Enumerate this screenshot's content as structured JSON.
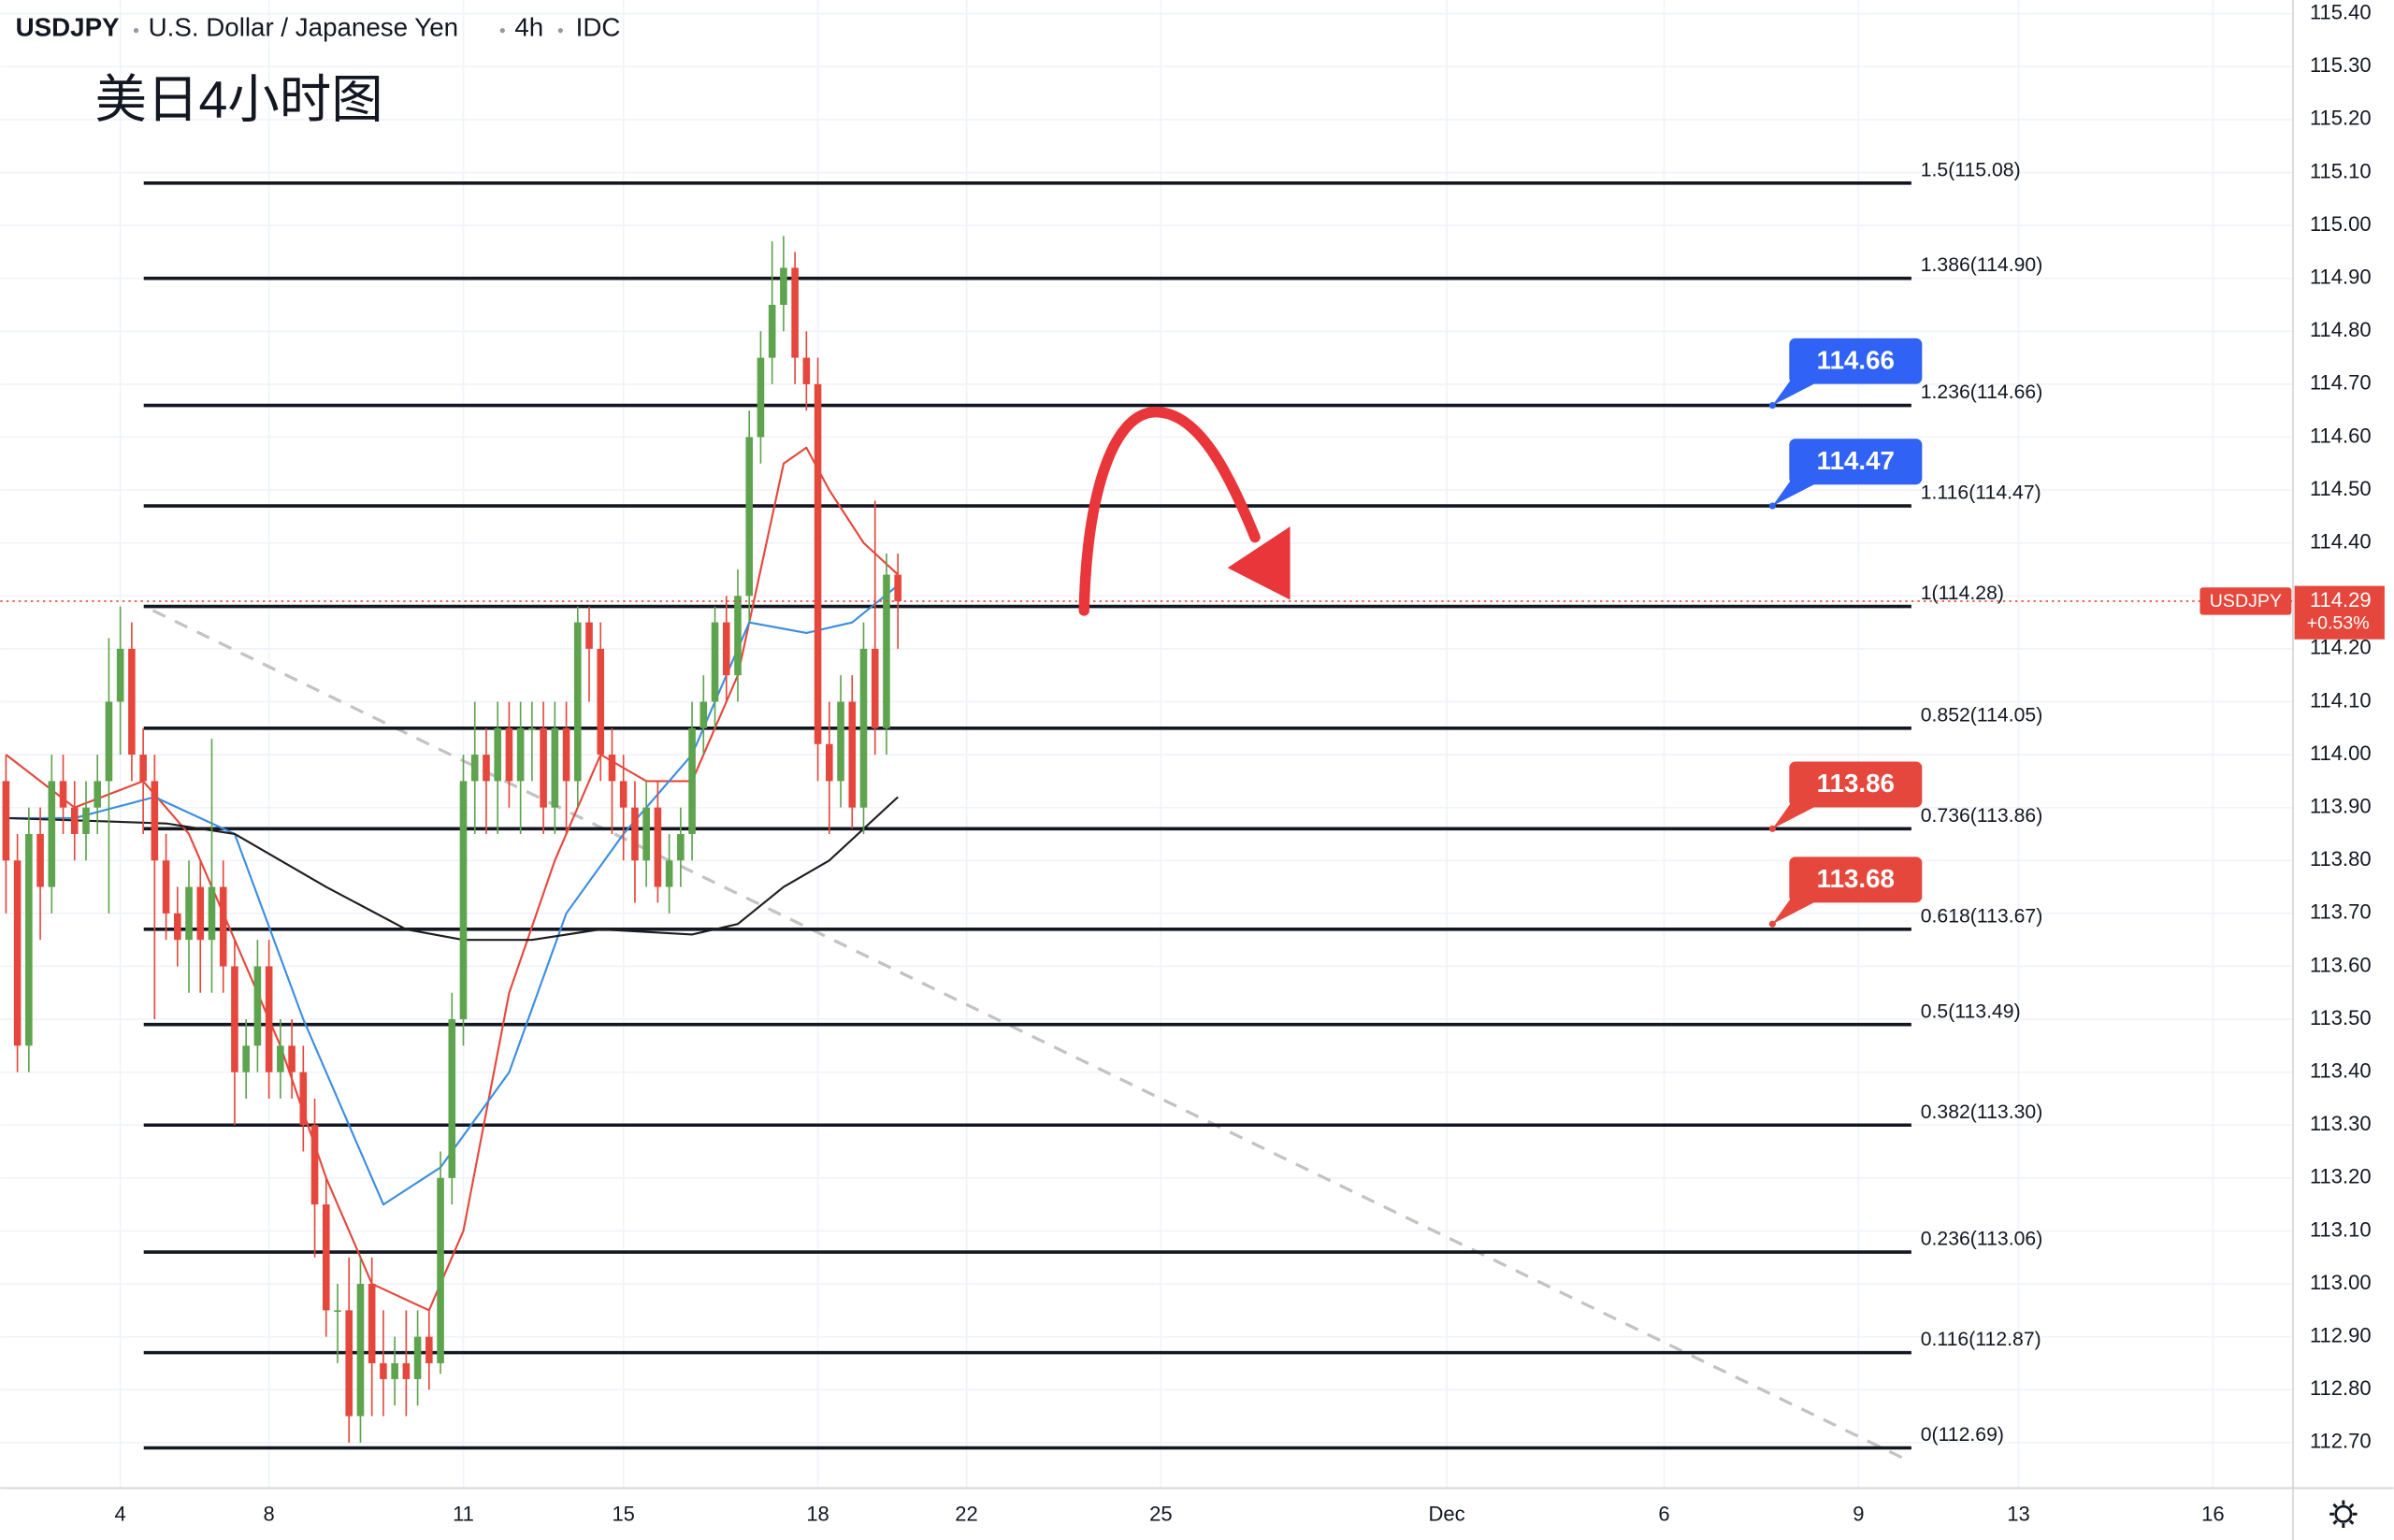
{
  "header": {
    "symbol": "USDJPY",
    "description": "U.S. Dollar / Japanese Yen",
    "interval": "4h",
    "source": "IDC"
  },
  "chart_data": {
    "type": "candlestick",
    "title": "美日4小时图",
    "open": [
      113.95,
      113.8,
      113.45,
      113.85,
      113.75,
      113.95,
      113.9,
      113.85,
      113.9,
      113.95,
      114.1,
      114.2,
      114.0,
      113.95,
      113.8,
      113.7,
      113.65,
      113.75,
      113.65,
      113.75,
      113.6,
      113.4,
      113.45,
      113.6,
      113.4,
      113.45,
      113.4,
      113.3,
      113.15,
      112.95,
      112.95,
      112.75,
      113.0,
      112.85,
      112.82,
      112.85,
      112.82,
      112.9,
      112.85,
      113.2,
      113.5,
      113.95,
      114.0,
      113.95,
      114.05,
      113.95,
      114.05,
      114.05,
      113.9,
      114.05,
      113.95,
      114.25,
      114.2,
      114.0,
      113.95,
      113.9,
      113.8,
      113.9,
      113.75,
      113.8,
      113.85,
      114.05,
      114.1,
      114.25,
      114.15,
      114.3,
      114.6,
      114.75,
      114.85,
      114.92,
      114.75,
      114.7,
      114.02,
      113.95,
      114.1,
      113.9,
      114.2,
      114.05,
      114.34
    ],
    "high": [
      114.0,
      113.85,
      113.9,
      113.9,
      114.0,
      114.0,
      113.95,
      113.95,
      114.0,
      114.22,
      114.28,
      114.25,
      114.05,
      114.0,
      113.85,
      113.75,
      113.8,
      113.8,
      114.03,
      113.8,
      113.65,
      113.5,
      113.65,
      113.65,
      113.5,
      113.5,
      113.45,
      113.35,
      113.2,
      113.0,
      113.05,
      113.05,
      113.05,
      112.95,
      112.9,
      112.95,
      112.95,
      112.95,
      113.25,
      113.55,
      114.0,
      114.1,
      114.05,
      114.1,
      114.1,
      114.1,
      114.1,
      114.1,
      114.1,
      114.1,
      114.28,
      114.28,
      114.25,
      114.05,
      114.0,
      113.95,
      113.95,
      113.95,
      113.85,
      113.9,
      114.1,
      114.15,
      114.28,
      114.3,
      114.35,
      114.65,
      114.8,
      114.97,
      114.98,
      114.95,
      114.8,
      114.75,
      114.1,
      114.15,
      114.15,
      114.25,
      114.48,
      114.38,
      114.38
    ],
    "low": [
      113.7,
      113.4,
      113.4,
      113.65,
      113.7,
      113.85,
      113.8,
      113.8,
      113.85,
      113.7,
      114.0,
      113.95,
      113.85,
      113.5,
      113.65,
      113.6,
      113.55,
      113.55,
      113.55,
      113.55,
      113.3,
      113.35,
      113.4,
      113.35,
      113.35,
      113.35,
      113.25,
      113.05,
      112.9,
      112.85,
      112.7,
      112.7,
      112.75,
      112.75,
      112.77,
      112.75,
      112.77,
      112.8,
      112.83,
      113.15,
      113.45,
      113.85,
      113.85,
      113.85,
      113.9,
      113.85,
      113.95,
      113.85,
      113.85,
      113.85,
      113.9,
      114.1,
      113.95,
      113.85,
      113.8,
      113.72,
      113.75,
      113.72,
      113.7,
      113.75,
      113.8,
      114.0,
      114.05,
      114.1,
      114.1,
      114.25,
      114.55,
      114.7,
      114.8,
      114.7,
      114.65,
      113.95,
      113.85,
      113.9,
      113.86,
      113.85,
      114.0,
      114.0,
      114.2
    ],
    "close": [
      113.8,
      113.45,
      113.85,
      113.75,
      113.95,
      113.9,
      113.85,
      113.9,
      113.95,
      114.1,
      114.2,
      114.0,
      113.95,
      113.8,
      113.7,
      113.65,
      113.75,
      113.65,
      113.75,
      113.6,
      113.4,
      113.45,
      113.6,
      113.4,
      113.45,
      113.4,
      113.3,
      113.15,
      112.95,
      112.95,
      112.75,
      113.0,
      112.85,
      112.82,
      112.85,
      112.82,
      112.9,
      112.85,
      113.2,
      113.5,
      113.95,
      114.0,
      113.95,
      114.05,
      113.95,
      114.05,
      114.05,
      113.9,
      114.05,
      113.95,
      114.25,
      114.2,
      114.0,
      113.95,
      113.9,
      113.8,
      113.9,
      113.75,
      113.8,
      113.85,
      114.05,
      114.1,
      114.25,
      114.15,
      114.3,
      114.6,
      114.75,
      114.85,
      114.92,
      114.75,
      114.7,
      114.02,
      113.95,
      114.1,
      113.9,
      114.2,
      114.05,
      114.34,
      114.29
    ],
    "up_color": "#5ea34d",
    "down_color": "#e5473c",
    "series": [
      {
        "color": "#e5473c",
        "x": [
          0,
          6,
          12,
          16,
          20,
          24,
          28,
          32,
          37,
          40,
          44,
          48,
          52,
          56,
          60,
          64,
          68,
          70,
          72,
          75,
          78
        ],
        "values": [
          114.0,
          113.9,
          113.95,
          113.85,
          113.65,
          113.45,
          113.2,
          113.0,
          112.95,
          113.1,
          113.55,
          113.8,
          114.0,
          113.95,
          113.95,
          114.15,
          114.55,
          114.58,
          114.5,
          114.4,
          114.34
        ]
      },
      {
        "color": "#3b8de0",
        "x": [
          0,
          6,
          13,
          20,
          26,
          33,
          38,
          44,
          49,
          54,
          60,
          65,
          70,
          74,
          78
        ],
        "values": [
          113.88,
          113.88,
          113.92,
          113.85,
          113.5,
          113.15,
          113.22,
          113.4,
          113.7,
          113.85,
          114.0,
          114.25,
          114.23,
          114.25,
          114.32
        ]
      },
      {
        "color": "#1e1e1e",
        "x": [
          0,
          14,
          20,
          28,
          35,
          40,
          46,
          52,
          60,
          64,
          68,
          72,
          78
        ],
        "values": [
          113.88,
          113.87,
          113.85,
          113.75,
          113.67,
          113.65,
          113.65,
          113.67,
          113.66,
          113.68,
          113.75,
          113.8,
          113.92
        ]
      }
    ],
    "levels": [
      {
        "label": "1.5(115.08)",
        "value": 115.08
      },
      {
        "label": "1.386(114.90)",
        "value": 114.9
      },
      {
        "label": "1.236(114.66)",
        "value": 114.66
      },
      {
        "label": "1.116(114.47)",
        "value": 114.47
      },
      {
        "label": "1(114.28)",
        "value": 114.28
      },
      {
        "label": "0.852(114.05)",
        "value": 114.05
      },
      {
        "label": "0.736(113.86)",
        "value": 113.86
      },
      {
        "label": "0.618(113.67)",
        "value": 113.67
      },
      {
        "label": "0.5(113.49)",
        "value": 113.49
      },
      {
        "label": "0.382(113.30)",
        "value": 113.3
      },
      {
        "label": "0.236(113.06)",
        "value": 113.06
      },
      {
        "label": "0.116(112.87)",
        "value": 112.87
      },
      {
        "label": "0(112.69)",
        "value": 112.69
      }
    ],
    "callouts": [
      {
        "value": 114.66,
        "color": "#2f62f5"
      },
      {
        "value": 114.47,
        "color": "#2f62f5"
      },
      {
        "value": 113.86,
        "color": "#e5473c"
      },
      {
        "value": 113.68,
        "color": "#e5473c"
      }
    ],
    "last_price": {
      "name": "USDJPY",
      "value": 114.29,
      "change": "+0.53%",
      "color": "#e5473c"
    },
    "ylim": [
      112.614,
      115.426
    ],
    "yticks": [
      {
        "value": 115.4,
        "label": "115.40"
      },
      {
        "value": 115.3,
        "label": "115.30"
      },
      {
        "value": 115.2,
        "label": "115.20"
      },
      {
        "value": 115.1,
        "label": "115.10"
      },
      {
        "value": 115.0,
        "label": "115.00"
      },
      {
        "value": 114.9,
        "label": "114.90"
      },
      {
        "value": 114.8,
        "label": "114.80"
      },
      {
        "value": 114.7,
        "label": "114.70"
      },
      {
        "value": 114.6,
        "label": "114.60"
      },
      {
        "value": 114.5,
        "label": "114.50"
      },
      {
        "value": 114.4,
        "label": "114.40"
      },
      {
        "value": 114.3,
        "label": "114.30"
      },
      {
        "value": 114.2,
        "label": "114.20"
      },
      {
        "value": 114.1,
        "label": "114.10"
      },
      {
        "value": 114.0,
        "label": "114.00"
      },
      {
        "value": 113.9,
        "label": "113.90"
      },
      {
        "value": 113.8,
        "label": "113.80"
      },
      {
        "value": 113.7,
        "label": "113.70"
      },
      {
        "value": 113.6,
        "label": "113.60"
      },
      {
        "value": 113.5,
        "label": "113.50"
      },
      {
        "value": 113.4,
        "label": "113.40"
      },
      {
        "value": 113.3,
        "label": "113.30"
      },
      {
        "value": 113.2,
        "label": "113.20"
      },
      {
        "value": 113.1,
        "label": "113.10"
      },
      {
        "value": 113.0,
        "label": "113.00"
      },
      {
        "value": 112.9,
        "label": "112.90"
      },
      {
        "value": 112.8,
        "label": "112.80"
      },
      {
        "value": 112.7,
        "label": "112.70"
      }
    ],
    "xlim": [
      -0.5,
      200
    ],
    "xticks": [
      {
        "value": 10,
        "label": "4"
      },
      {
        "value": 23,
        "label": "8"
      },
      {
        "value": 40,
        "label": "11"
      },
      {
        "value": 54,
        "label": "15"
      },
      {
        "value": 71,
        "label": "18"
      },
      {
        "value": 84,
        "label": "22"
      },
      {
        "value": 101,
        "label": "25"
      },
      {
        "value": 126,
        "label": "Dec"
      },
      {
        "value": 145,
        "label": "6"
      },
      {
        "value": 162,
        "label": "9"
      },
      {
        "value": 176,
        "label": "13"
      },
      {
        "value": 193,
        "label": "16"
      }
    ],
    "grid": true
  }
}
